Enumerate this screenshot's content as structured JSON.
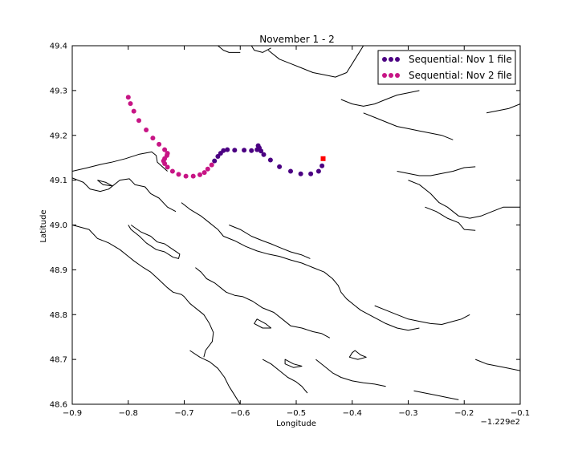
{
  "chart_data": {
    "type": "scatter",
    "title": "November 1 - 2",
    "xlabel": "Longitude",
    "ylabel": "Latitude",
    "x_offset_label": "−1.229e2",
    "xlim": [
      -0.9,
      -0.1
    ],
    "ylim": [
      48.6,
      49.4
    ],
    "xticks": [
      "−0.9",
      "−0.8",
      "−0.7",
      "−0.6",
      "−0.5",
      "−0.4",
      "−0.3",
      "−0.2",
      "−0.1"
    ],
    "xtick_values": [
      -0.9,
      -0.8,
      -0.7,
      -0.6,
      -0.5,
      -0.4,
      -0.3,
      -0.2,
      -0.1
    ],
    "yticks": [
      "48.6",
      "48.7",
      "48.8",
      "48.9",
      "49.0",
      "49.1",
      "49.2",
      "49.3",
      "49.4"
    ],
    "ytick_values": [
      48.6,
      48.7,
      48.8,
      48.9,
      49.0,
      49.1,
      49.2,
      49.3,
      49.4
    ],
    "grid": false,
    "legend_position": "top-right",
    "series": [
      {
        "name": "Sequential: Nov 1 file",
        "color": "#4b0082",
        "points": [
          [
            -0.454,
            49.132
          ],
          [
            -0.46,
            49.12
          ],
          [
            -0.474,
            49.114
          ],
          [
            -0.492,
            49.114
          ],
          [
            -0.51,
            49.12
          ],
          [
            -0.53,
            49.13
          ],
          [
            -0.546,
            49.145
          ],
          [
            -0.558,
            49.157
          ],
          [
            -0.563,
            49.165
          ],
          [
            -0.566,
            49.172
          ],
          [
            -0.568,
            49.177
          ],
          [
            -0.57,
            49.168
          ],
          [
            -0.58,
            49.166
          ],
          [
            -0.593,
            49.167
          ],
          [
            -0.61,
            49.167
          ],
          [
            -0.623,
            49.168
          ],
          [
            -0.63,
            49.166
          ],
          [
            -0.635,
            49.16
          ],
          [
            -0.64,
            49.153
          ],
          [
            -0.646,
            49.143
          ]
        ]
      },
      {
        "name": "Sequential: Nov 2 file",
        "color": "#c71585",
        "points": [
          [
            -0.651,
            49.134
          ],
          [
            -0.658,
            49.125
          ],
          [
            -0.664,
            49.117
          ],
          [
            -0.672,
            49.112
          ],
          [
            -0.684,
            49.109
          ],
          [
            -0.697,
            49.109
          ],
          [
            -0.71,
            49.113
          ],
          [
            -0.721,
            49.12
          ],
          [
            -0.73,
            49.129
          ],
          [
            -0.735,
            49.137
          ],
          [
            -0.737,
            49.143
          ],
          [
            -0.735,
            49.148
          ],
          [
            -0.731,
            49.155
          ],
          [
            -0.73,
            49.16
          ],
          [
            -0.735,
            49.168
          ],
          [
            -0.745,
            49.18
          ],
          [
            -0.756,
            49.194
          ],
          [
            -0.768,
            49.212
          ],
          [
            -0.781,
            49.233
          ],
          [
            -0.79,
            49.254
          ],
          [
            -0.796,
            49.271
          ],
          [
            -0.8,
            49.285
          ]
        ]
      }
    ],
    "marker": {
      "shape": "square",
      "color": "#ff0000",
      "x": -0.452,
      "y": 49.148
    },
    "coastlines": [
      [
        [
          -0.9,
          49.12
        ],
        [
          -0.875,
          49.127
        ],
        [
          -0.85,
          49.135
        ],
        [
          -0.83,
          49.14
        ],
        [
          -0.805,
          49.148
        ],
        [
          -0.78,
          49.158
        ],
        [
          -0.758,
          49.163
        ],
        [
          -0.75,
          49.155
        ],
        [
          -0.748,
          49.14
        ],
        [
          -0.73,
          49.12
        ]
      ],
      [
        [
          -0.9,
          49.105
        ],
        [
          -0.88,
          49.095
        ],
        [
          -0.868,
          49.08
        ],
        [
          -0.85,
          49.075
        ],
        [
          -0.835,
          49.08
        ],
        [
          -0.815,
          49.1
        ],
        [
          -0.798,
          49.103
        ],
        [
          -0.788,
          49.09
        ],
        [
          -0.77,
          49.085
        ],
        [
          -0.76,
          49.07
        ],
        [
          -0.745,
          49.06
        ],
        [
          -0.73,
          49.04
        ],
        [
          -0.715,
          49.03
        ]
      ],
      [
        [
          -0.855,
          49.1
        ],
        [
          -0.84,
          49.095
        ],
        [
          -0.828,
          49.087
        ],
        [
          -0.845,
          49.09
        ],
        [
          -0.855,
          49.1
        ]
      ],
      [
        [
          -0.9,
          49.0
        ],
        [
          -0.87,
          48.99
        ],
        [
          -0.855,
          48.97
        ],
        [
          -0.835,
          48.96
        ],
        [
          -0.815,
          48.945
        ],
        [
          -0.8,
          48.93
        ],
        [
          -0.79,
          48.92
        ],
        [
          -0.773,
          48.905
        ],
        [
          -0.76,
          48.895
        ],
        [
          -0.747,
          48.88
        ],
        [
          -0.73,
          48.86
        ],
        [
          -0.72,
          48.85
        ],
        [
          -0.705,
          48.845
        ],
        [
          -0.7,
          48.84
        ],
        [
          -0.69,
          48.825
        ],
        [
          -0.675,
          48.81
        ],
        [
          -0.665,
          48.8
        ],
        [
          -0.655,
          48.78
        ],
        [
          -0.648,
          48.76
        ],
        [
          -0.65,
          48.74
        ],
        [
          -0.662,
          48.72
        ],
        [
          -0.665,
          48.705
        ]
      ],
      [
        [
          -0.795,
          49.0
        ],
        [
          -0.778,
          48.985
        ],
        [
          -0.76,
          48.975
        ],
        [
          -0.748,
          48.962
        ],
        [
          -0.735,
          48.958
        ],
        [
          -0.72,
          48.945
        ],
        [
          -0.708,
          48.935
        ],
        [
          -0.71,
          48.925
        ],
        [
          -0.72,
          48.928
        ],
        [
          -0.735,
          48.94
        ],
        [
          -0.75,
          48.945
        ],
        [
          -0.768,
          48.96
        ],
        [
          -0.78,
          48.975
        ],
        [
          -0.795,
          48.99
        ],
        [
          -0.8,
          49.0
        ]
      ],
      [
        [
          -0.705,
          49.05
        ],
        [
          -0.69,
          49.035
        ],
        [
          -0.67,
          49.02
        ],
        [
          -0.655,
          49.005
        ],
        [
          -0.64,
          48.99
        ],
        [
          -0.63,
          48.975
        ],
        [
          -0.61,
          48.965
        ],
        [
          -0.59,
          48.952
        ],
        [
          -0.57,
          48.942
        ],
        [
          -0.55,
          48.935
        ],
        [
          -0.53,
          48.93
        ],
        [
          -0.51,
          48.922
        ],
        [
          -0.49,
          48.915
        ],
        [
          -0.47,
          48.905
        ],
        [
          -0.45,
          48.895
        ],
        [
          -0.435,
          48.88
        ],
        [
          -0.425,
          48.865
        ],
        [
          -0.42,
          48.85
        ],
        [
          -0.41,
          48.835
        ],
        [
          -0.395,
          48.82
        ],
        [
          -0.385,
          48.81
        ],
        [
          -0.37,
          48.8
        ],
        [
          -0.355,
          48.79
        ],
        [
          -0.34,
          48.78
        ],
        [
          -0.32,
          48.77
        ],
        [
          -0.3,
          48.765
        ],
        [
          -0.28,
          48.77
        ]
      ],
      [
        [
          -0.62,
          49.0
        ],
        [
          -0.6,
          48.99
        ],
        [
          -0.58,
          48.975
        ],
        [
          -0.56,
          48.965
        ],
        [
          -0.545,
          48.958
        ],
        [
          -0.53,
          48.95
        ],
        [
          -0.51,
          48.94
        ],
        [
          -0.49,
          48.933
        ],
        [
          -0.475,
          48.925
        ]
      ],
      [
        [
          -0.68,
          48.905
        ],
        [
          -0.67,
          48.895
        ],
        [
          -0.66,
          48.88
        ],
        [
          -0.645,
          48.87
        ],
        [
          -0.635,
          48.86
        ],
        [
          -0.625,
          48.85
        ],
        [
          -0.61,
          48.843
        ],
        [
          -0.595,
          48.84
        ],
        [
          -0.578,
          48.83
        ],
        [
          -0.56,
          48.815
        ],
        [
          -0.54,
          48.805
        ],
        [
          -0.525,
          48.79
        ],
        [
          -0.51,
          48.775
        ],
        [
          -0.49,
          48.77
        ],
        [
          -0.47,
          48.762
        ],
        [
          -0.455,
          48.758
        ],
        [
          -0.44,
          48.748
        ]
      ],
      [
        [
          -0.69,
          48.72
        ],
        [
          -0.672,
          48.705
        ],
        [
          -0.655,
          48.695
        ],
        [
          -0.64,
          48.68
        ],
        [
          -0.628,
          48.66
        ],
        [
          -0.62,
          48.64
        ],
        [
          -0.61,
          48.62
        ],
        [
          -0.6,
          48.6
        ]
      ],
      [
        [
          -0.56,
          48.7
        ],
        [
          -0.545,
          48.69
        ],
        [
          -0.53,
          48.675
        ],
        [
          -0.515,
          48.66
        ],
        [
          -0.5,
          48.65
        ],
        [
          -0.49,
          48.64
        ],
        [
          -0.48,
          48.625
        ]
      ],
      [
        [
          -0.36,
          48.82
        ],
        [
          -0.34,
          48.81
        ],
        [
          -0.32,
          48.8
        ],
        [
          -0.3,
          48.79
        ],
        [
          -0.28,
          48.785
        ],
        [
          -0.26,
          48.78
        ],
        [
          -0.24,
          48.778
        ],
        [
          -0.22,
          48.785
        ],
        [
          -0.205,
          48.79
        ],
        [
          -0.19,
          48.8
        ]
      ],
      [
        [
          -0.465,
          48.7
        ],
        [
          -0.45,
          48.685
        ],
        [
          -0.435,
          48.67
        ],
        [
          -0.42,
          48.66
        ],
        [
          -0.4,
          48.652
        ],
        [
          -0.38,
          48.648
        ],
        [
          -0.36,
          48.645
        ],
        [
          -0.34,
          48.64
        ]
      ],
      [
        [
          -0.29,
          48.63
        ],
        [
          -0.27,
          48.625
        ],
        [
          -0.25,
          48.62
        ],
        [
          -0.23,
          48.615
        ],
        [
          -0.21,
          48.61
        ]
      ],
      [
        [
          -0.18,
          48.7
        ],
        [
          -0.16,
          48.69
        ],
        [
          -0.14,
          48.685
        ],
        [
          -0.12,
          48.68
        ],
        [
          -0.1,
          48.675
        ]
      ],
      [
        [
          -0.32,
          49.12
        ],
        [
          -0.3,
          49.115
        ],
        [
          -0.28,
          49.11
        ],
        [
          -0.26,
          49.11
        ],
        [
          -0.24,
          49.115
        ],
        [
          -0.22,
          49.12
        ],
        [
          -0.2,
          49.128
        ],
        [
          -0.18,
          49.13
        ]
      ],
      [
        [
          -0.3,
          49.1
        ],
        [
          -0.28,
          49.09
        ],
        [
          -0.26,
          49.07
        ],
        [
          -0.245,
          49.05
        ],
        [
          -0.23,
          49.04
        ],
        [
          -0.21,
          49.02
        ],
        [
          -0.19,
          49.015
        ],
        [
          -0.17,
          49.02
        ],
        [
          -0.15,
          49.03
        ],
        [
          -0.13,
          49.04
        ],
        [
          -0.1,
          49.04
        ]
      ],
      [
        [
          -0.27,
          49.04
        ],
        [
          -0.25,
          49.03
        ],
        [
          -0.23,
          49.015
        ],
        [
          -0.21,
          49.005
        ],
        [
          -0.2,
          48.99
        ],
        [
          -0.18,
          48.988
        ]
      ],
      [
        [
          -0.42,
          49.28
        ],
        [
          -0.4,
          49.27
        ],
        [
          -0.38,
          49.265
        ],
        [
          -0.36,
          49.27
        ],
        [
          -0.34,
          49.28
        ],
        [
          -0.32,
          49.29
        ],
        [
          -0.3,
          49.295
        ],
        [
          -0.28,
          49.3
        ]
      ],
      [
        [
          -0.38,
          49.25
        ],
        [
          -0.36,
          49.24
        ],
        [
          -0.34,
          49.23
        ],
        [
          -0.32,
          49.22
        ],
        [
          -0.3,
          49.215
        ],
        [
          -0.28,
          49.21
        ],
        [
          -0.26,
          49.205
        ],
        [
          -0.24,
          49.2
        ],
        [
          -0.22,
          49.19
        ]
      ],
      [
        [
          -0.55,
          49.39
        ],
        [
          -0.53,
          49.37
        ],
        [
          -0.51,
          49.36
        ],
        [
          -0.49,
          49.35
        ],
        [
          -0.47,
          49.34
        ],
        [
          -0.45,
          49.335
        ],
        [
          -0.43,
          49.33
        ],
        [
          -0.41,
          49.34
        ],
        [
          -0.4,
          49.36
        ],
        [
          -0.39,
          49.38
        ],
        [
          -0.38,
          49.4
        ]
      ],
      [
        [
          -0.64,
          49.4
        ],
        [
          -0.63,
          49.39
        ],
        [
          -0.62,
          49.385
        ],
        [
          -0.6,
          49.385
        ]
      ],
      [
        [
          -0.58,
          49.4
        ],
        [
          -0.575,
          49.39
        ],
        [
          -0.56,
          49.385
        ],
        [
          -0.545,
          49.395
        ]
      ],
      [
        [
          -0.1,
          49.27
        ],
        [
          -0.12,
          49.26
        ],
        [
          -0.14,
          49.255
        ],
        [
          -0.16,
          49.25
        ]
      ]
    ],
    "islands": [
      [
        [
          -0.395,
          48.72
        ],
        [
          -0.385,
          48.71
        ],
        [
          -0.375,
          48.705
        ],
        [
          -0.39,
          48.7
        ],
        [
          -0.405,
          48.705
        ],
        [
          -0.4,
          48.715
        ],
        [
          -0.395,
          48.72
        ]
      ],
      [
        [
          -0.57,
          48.79
        ],
        [
          -0.555,
          48.78
        ],
        [
          -0.545,
          48.77
        ],
        [
          -0.56,
          48.77
        ],
        [
          -0.575,
          48.78
        ],
        [
          -0.57,
          48.79
        ]
      ],
      [
        [
          -0.52,
          48.7
        ],
        [
          -0.505,
          48.69
        ],
        [
          -0.49,
          48.685
        ],
        [
          -0.505,
          48.682
        ],
        [
          -0.52,
          48.69
        ],
        [
          -0.52,
          48.7
        ]
      ]
    ]
  }
}
